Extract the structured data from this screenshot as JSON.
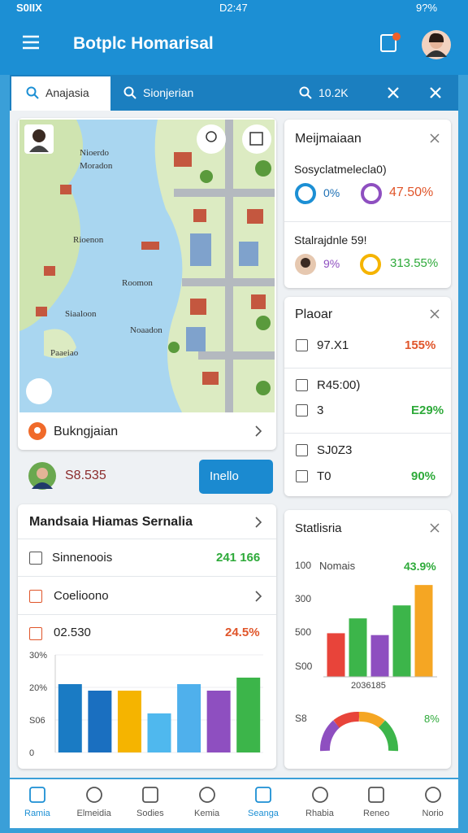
{
  "status_bar": {
    "carrier": "S0IIX",
    "time": "D2:47",
    "battery": "9?%"
  },
  "header": {
    "title": "Botplc Homarisal"
  },
  "tabs": [
    "Anajasia",
    "Sionjerian",
    "10.2K"
  ],
  "map": {
    "labels": [
      "Nioerdo",
      "Moradon",
      "Rioenon",
      "Roomon",
      "Siaaloon",
      "Noaadon",
      "Paaeiao"
    ],
    "footer": "Bukngjaian"
  },
  "profile": {
    "value": "S8.535",
    "button": "Inello"
  },
  "summary_card": {
    "title": "Mandsaia Hiamas Sernalia",
    "rows": [
      {
        "label": "Sinnenoois",
        "value": "241 166"
      },
      {
        "label": "Coelioono"
      },
      {
        "label": "02.530",
        "value": "24.5%"
      }
    ],
    "chart": {
      "type": "bar",
      "categories": [
        null,
        null,
        null,
        null,
        null,
        null,
        null
      ],
      "values": [
        21,
        19,
        19,
        12,
        21,
        19,
        23
      ],
      "colors": [
        "#1a7bc4",
        "#1a6fc0",
        "#f5b400",
        "#4fb8ee",
        "#4fb0ec",
        "#8e4fc0",
        "#3cb54a"
      ],
      "ylim": [
        0,
        30
      ],
      "yticks": [
        {
          "value": 30,
          "label": "30%"
        },
        {
          "value": 20,
          "label": "20%"
        },
        {
          "value": 10,
          "label": "S06"
        },
        0
      ]
    }
  },
  "stats_card": {
    "title": "Meijmaiaan",
    "rows": [
      {
        "label": "Sosyclatmelecla0)",
        "values": [
          "0%",
          "47.50%"
        ]
      },
      {
        "label": "Stalrajdnle 59!",
        "values": [
          "9%",
          "313.55%"
        ]
      }
    ]
  },
  "plan_card": {
    "title": "Plaoar",
    "rows": [
      {
        "label": "97.X1",
        "value": "155%"
      },
      {
        "label": "R45:00)"
      },
      {
        "label": "3",
        "value": "E29%"
      },
      {
        "label": "SJ0Z3"
      },
      {
        "label": "T0",
        "value": "90%"
      }
    ]
  },
  "chart_card": {
    "title": "Statlisria",
    "legend": "Nomais",
    "legend_value": "43.9%",
    "axis_labels": [
      "100",
      "300",
      "500",
      "S00"
    ],
    "x_label": "2036185",
    "chart": {
      "type": "bar",
      "categories": [
        null,
        null,
        null,
        null,
        null
      ],
      "values": [
        47,
        63,
        45,
        77,
        99
      ],
      "colors": [
        "#e8443a",
        "#3cb54a",
        "#8e4fc0",
        "#3cb54a",
        "#f5a623"
      ],
      "ylim": [
        0,
        100
      ]
    },
    "gauge_label": "S8",
    "gauge_value": "8%"
  },
  "nav": [
    "Ramia",
    "Elmeidia",
    "Sodies",
    "Kemia",
    "Seanga",
    "Rhabia",
    "Reneo",
    "Norio"
  ]
}
